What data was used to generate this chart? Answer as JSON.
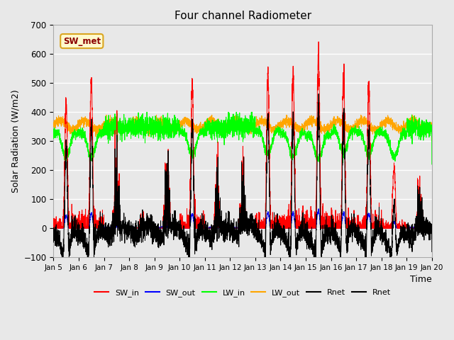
{
  "title": "Four channel Radiometer",
  "xlabel": "Time",
  "ylabel": "Solar Radiation (W/m2)",
  "ylim": [
    -100,
    700
  ],
  "xlim": [
    0,
    15
  ],
  "xtick_labels": [
    "Jan 5",
    "Jan 6",
    "Jan 7",
    "Jan 8",
    "Jan 9",
    "Jan 10",
    "Jan 11",
    "Jan 12",
    "Jan 13",
    "Jan 14",
    "Jan 15",
    "Jan 16",
    "Jan 17",
    "Jan 18",
    "Jan 19",
    "Jan 20"
  ],
  "annotation_text": "SW_met",
  "annotation_color": "#8B0000",
  "annotation_bg": "#FFFACD",
  "annotation_border": "#DAA520",
  "legend_entries": [
    "SW_in",
    "SW_out",
    "LW_in",
    "LW_out",
    "Rnet",
    "Rnet"
  ],
  "legend_colors": [
    "red",
    "blue",
    "lime",
    "orange",
    "black",
    "black"
  ],
  "colors": {
    "SW_in": "red",
    "SW_out": "blue",
    "LW_in": "lime",
    "LW_out": "orange",
    "Rnet": "black"
  },
  "bg_color": "#e8e8e8",
  "plot_bg": "#e8e8e8",
  "seed": 42,
  "figsize": [
    6.4,
    4.8
  ],
  "dpi": 100
}
